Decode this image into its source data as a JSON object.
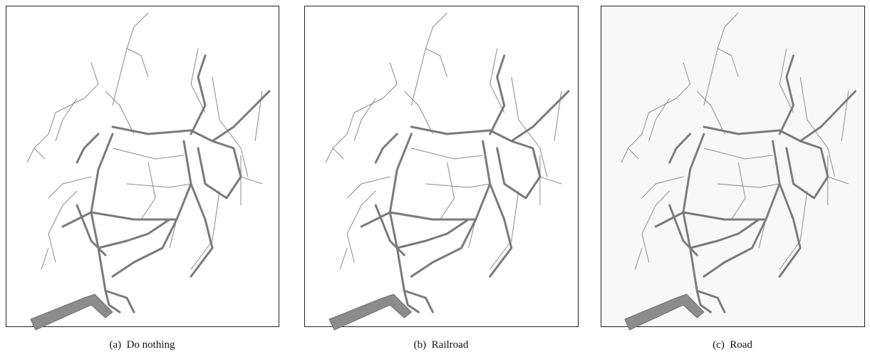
{
  "panels": [
    {
      "caption": "(a)  Do nothing"
    },
    {
      "caption": "(b)  Railroad"
    },
    {
      "caption": "(c)  Road"
    }
  ]
}
